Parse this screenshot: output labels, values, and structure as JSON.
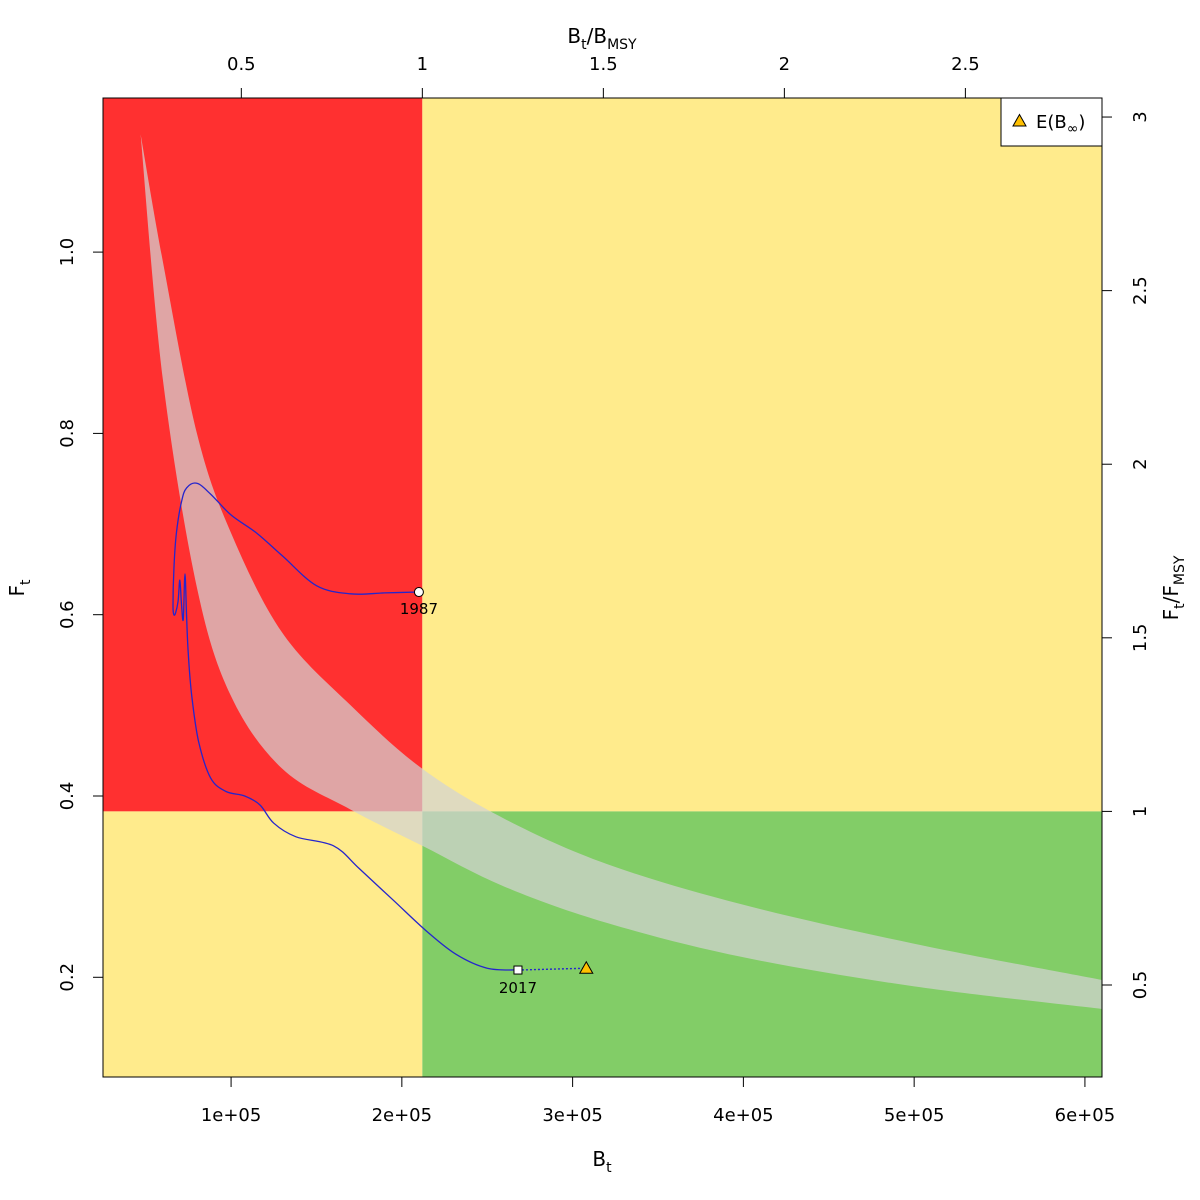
{
  "chart_data": {
    "type": "line",
    "title": "",
    "xlabel": {
      "main": "B",
      "sub": "t"
    },
    "ylabel": {
      "main": "F",
      "sub": "t"
    },
    "x2label": {
      "main": "B",
      "sub1": "t",
      "sep": "/B",
      "sub2": "MSY"
    },
    "y2label": {
      "main": "F",
      "sub1": "t",
      "sep": "/F",
      "sub2": "MSY"
    },
    "xlim": [
      25000,
      610000
    ],
    "ylim": [
      0.09,
      1.17
    ],
    "x_ticks": [
      100000,
      200000,
      300000,
      400000,
      500000,
      600000
    ],
    "x_tick_labels": [
      "1e+05",
      "2e+05",
      "3e+05",
      "4e+05",
      "5e+05",
      "6e+05"
    ],
    "y_ticks": [
      0.2,
      0.4,
      0.6,
      0.8,
      1.0
    ],
    "y_tick_labels": [
      "0.2",
      "0.4",
      "0.6",
      "0.8",
      "1.0"
    ],
    "bmsy": 212000,
    "fmsy": 0.383,
    "x2_ticks": [
      0.5,
      1,
      1.5,
      2,
      2.5
    ],
    "x2_tick_labels": [
      "0.5",
      "1",
      "1.5",
      "2",
      "2.5"
    ],
    "y2_ticks": [
      0.5,
      1,
      1.5,
      2,
      2.5,
      3
    ],
    "y2_tick_labels": [
      "0.5",
      "1",
      "1.5",
      "2",
      "2.5",
      "3"
    ],
    "colors": {
      "red_zone": "#ff3030",
      "yellow_zone": "#ffeb8c",
      "green_zone": "#82cd67",
      "msy_band": "#d3d3d3",
      "trajectory": "#2525cc",
      "expected_marker": "#ffc000"
    },
    "msy_band": {
      "x": [
        47000,
        60000,
        80000,
        100000,
        130000,
        170000,
        212000,
        260000,
        320000,
        400000,
        500000,
        610000
      ],
      "upper": [
        1.13,
        0.99,
        0.8,
        0.69,
        0.58,
        0.5,
        0.43,
        0.375,
        0.325,
        0.28,
        0.237,
        0.197
      ],
      "lower": [
        1.13,
        0.86,
        0.63,
        0.51,
        0.43,
        0.385,
        0.345,
        0.3,
        0.26,
        0.222,
        0.19,
        0.165
      ]
    },
    "trajectory": {
      "x": [
        210000,
        190000,
        170000,
        150000,
        130000,
        115000,
        100000,
        88000,
        80000,
        74000,
        71000,
        68000,
        66500,
        66000,
        66500,
        67500,
        69000,
        70000,
        71000,
        72000,
        73000,
        74000,
        75000,
        77000,
        81000,
        88000,
        97000,
        108000,
        117000,
        125000,
        138000,
        160000,
        175000,
        195000,
        215000,
        232000,
        250000,
        268000
      ],
      "y": [
        0.625,
        0.624,
        0.623,
        0.632,
        0.665,
        0.69,
        0.71,
        0.733,
        0.745,
        0.74,
        0.725,
        0.69,
        0.65,
        0.61,
        0.6,
        0.602,
        0.615,
        0.638,
        0.61,
        0.595,
        0.645,
        0.595,
        0.555,
        0.51,
        0.46,
        0.42,
        0.405,
        0.4,
        0.39,
        0.37,
        0.355,
        0.345,
        0.32,
        0.285,
        0.25,
        0.225,
        0.21,
        0.208
      ]
    },
    "start_point": {
      "x": 210000,
      "y": 0.625,
      "label": "1987"
    },
    "end_point": {
      "x": 268000,
      "y": 0.208,
      "label": "2017"
    },
    "expected_point": {
      "x": 308000,
      "y": 0.21
    },
    "legend": {
      "position": "top-right",
      "label": "E(B",
      "label_sub": "∞",
      "label_close": ")"
    }
  }
}
